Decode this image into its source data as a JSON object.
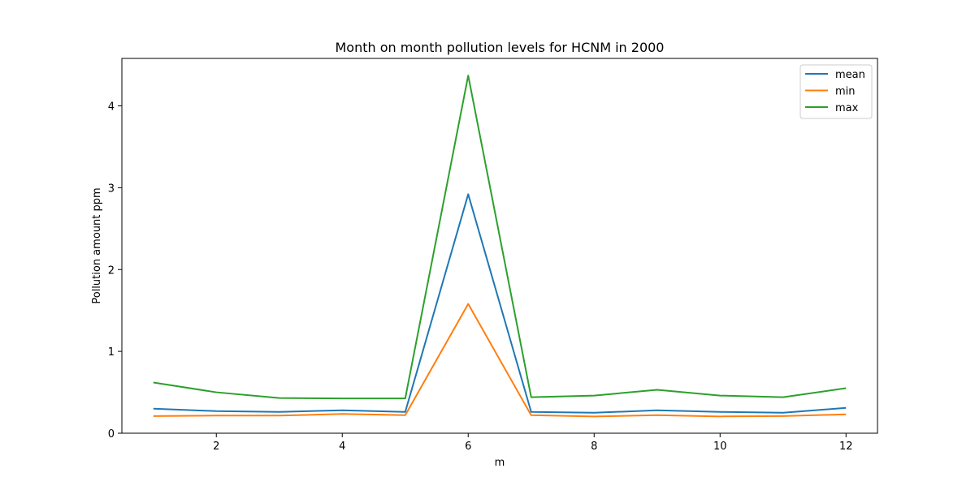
{
  "chart_data": {
    "type": "line",
    "title": "Month on month pollution levels for HCNM in 2000",
    "xlabel": "m",
    "ylabel": "Pollution amount ppm",
    "x": [
      1,
      2,
      3,
      4,
      5,
      6,
      7,
      8,
      9,
      10,
      11,
      12
    ],
    "xlim": [
      0.5,
      12.5
    ],
    "ylim": [
      0,
      4.58
    ],
    "xticks": [
      2,
      4,
      6,
      8,
      10,
      12
    ],
    "yticks": [
      0,
      1,
      2,
      3,
      4
    ],
    "grid": false,
    "legend_position": "top-right",
    "series": [
      {
        "name": "mean",
        "color": "#1f77b4",
        "values": [
          0.3,
          0.27,
          0.26,
          0.28,
          0.26,
          2.92,
          0.26,
          0.25,
          0.28,
          0.26,
          0.25,
          0.31
        ]
      },
      {
        "name": "min",
        "color": "#ff7f0e",
        "values": [
          0.21,
          0.215,
          0.215,
          0.235,
          0.22,
          1.58,
          0.22,
          0.205,
          0.22,
          0.205,
          0.21,
          0.23
        ]
      },
      {
        "name": "max",
        "color": "#2ca02c",
        "values": [
          0.62,
          0.5,
          0.43,
          0.425,
          0.425,
          4.37,
          0.44,
          0.46,
          0.53,
          0.46,
          0.44,
          0.55
        ]
      }
    ]
  }
}
